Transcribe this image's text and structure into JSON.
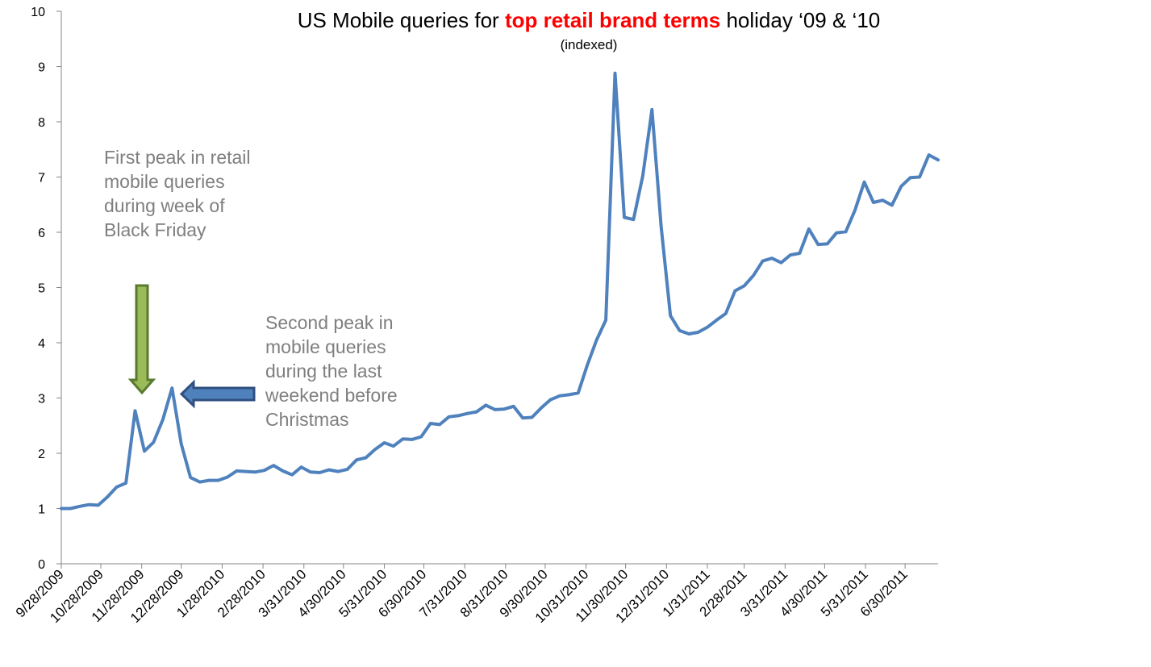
{
  "title": {
    "prefix": "US Mobile queries for ",
    "highlight": "top retail brand terms",
    "suffix": " holiday ‘09 & ‘10",
    "highlight_color": "#ff0000"
  },
  "subtitle": "(indexed)",
  "annotations": [
    {
      "text": "First peak in retail mobile queries during week of Black Friday",
      "arrow": "down",
      "arrow_color": "#9bbb59"
    },
    {
      "text": "Second peak in mobile queries during the last weekend before Christmas",
      "arrow": "left",
      "arrow_color": "#4f81bd"
    }
  ],
  "chart_data": {
    "type": "line",
    "ylim": [
      0,
      10
    ],
    "yticks": [
      0,
      1,
      2,
      3,
      4,
      5,
      6,
      7,
      8,
      9,
      10
    ],
    "xtick_labels": [
      "9/28/2009",
      "10/28/2009",
      "11/28/2009",
      "12/28/2009",
      "1/28/2010",
      "2/28/2010",
      "3/31/2010",
      "4/30/2010",
      "5/31/2010",
      "6/30/2010",
      "7/31/2010",
      "8/31/2010",
      "9/30/2010",
      "10/31/2010",
      "11/30/2010",
      "12/31/2010",
      "1/31/2011",
      "2/28/2011",
      "3/31/2011",
      "4/30/2011",
      "5/31/2011",
      "6/30/2011"
    ],
    "line_color": "#4f81bd",
    "grid": false,
    "series": [
      {
        "x": [
          "9/28/2009",
          "10/5/2009",
          "10/12/2009",
          "10/19/2009",
          "10/26/2009",
          "11/2/2009",
          "11/9/2009",
          "11/16/2009",
          "11/23/2009",
          "11/30/2009",
          "12/7/2009",
          "12/14/2009",
          "12/21/2009",
          "12/28/2009",
          "1/4/2010",
          "1/11/2010",
          "1/18/2010",
          "1/25/2010",
          "2/1/2010",
          "2/8/2010",
          "2/15/2010",
          "2/22/2010",
          "3/1/2010",
          "3/8/2010",
          "3/15/2010",
          "3/22/2010",
          "3/29/2010",
          "4/5/2010",
          "4/12/2010",
          "4/19/2010",
          "4/26/2010",
          "5/3/2010",
          "5/10/2010",
          "5/17/2010",
          "5/24/2010",
          "5/31/2010",
          "6/7/2010",
          "6/14/2010",
          "6/21/2010",
          "6/28/2010",
          "7/5/2010",
          "7/12/2010",
          "7/19/2010",
          "7/26/2010",
          "8/2/2010",
          "8/9/2010",
          "8/16/2010",
          "8/23/2010",
          "8/30/2010",
          "9/6/2010",
          "9/13/2010",
          "9/20/2010",
          "9/27/2010",
          "10/4/2010",
          "10/11/2010",
          "10/18/2010",
          "10/25/2010",
          "11/1/2010",
          "11/8/2010",
          "11/15/2010",
          "11/22/2010",
          "11/29/2010",
          "12/6/2010",
          "12/13/2010",
          "12/20/2010",
          "12/27/2010",
          "1/3/2011",
          "1/10/2011",
          "1/17/2011",
          "1/24/2011",
          "1/31/2011",
          "2/7/2011",
          "2/14/2011",
          "2/21/2011",
          "2/28/2011",
          "3/7/2011",
          "3/14/2011",
          "3/21/2011",
          "3/28/2011",
          "4/4/2011",
          "4/11/2011",
          "4/18/2011",
          "4/25/2011",
          "5/2/2011",
          "5/9/2011",
          "5/16/2011",
          "5/23/2011",
          "5/30/2011",
          "6/6/2011",
          "6/13/2011",
          "6/20/2011",
          "6/27/2011",
          "7/4/2011",
          "7/11/2011",
          "7/18/2011",
          "7/25/2011"
        ],
        "values": [
          1.0,
          1.0,
          1.04,
          1.07,
          1.06,
          1.21,
          1.39,
          1.46,
          2.77,
          2.04,
          2.2,
          2.61,
          3.18,
          2.17,
          1.56,
          1.48,
          1.51,
          1.51,
          1.57,
          1.68,
          1.67,
          1.66,
          1.69,
          1.78,
          1.68,
          1.61,
          1.75,
          1.66,
          1.65,
          1.7,
          1.67,
          1.71,
          1.88,
          1.92,
          2.07,
          2.19,
          2.13,
          2.26,
          2.25,
          2.3,
          2.54,
          2.52,
          2.66,
          2.68,
          2.72,
          2.75,
          2.87,
          2.79,
          2.8,
          2.85,
          2.64,
          2.65,
          2.82,
          2.97,
          3.04,
          3.06,
          3.09,
          3.6,
          4.05,
          4.41,
          8.88,
          6.27,
          6.23,
          7.02,
          8.22,
          6.1,
          4.49,
          4.22,
          4.16,
          4.19,
          4.28,
          4.41,
          4.53,
          4.94,
          5.03,
          5.22,
          5.48,
          5.53,
          5.45,
          5.59,
          5.62,
          6.06,
          5.78,
          5.79,
          5.99,
          6.01,
          6.4,
          6.91,
          6.54,
          6.58,
          6.49,
          6.83,
          6.99,
          7.0,
          7.4,
          7.31
        ]
      }
    ]
  }
}
